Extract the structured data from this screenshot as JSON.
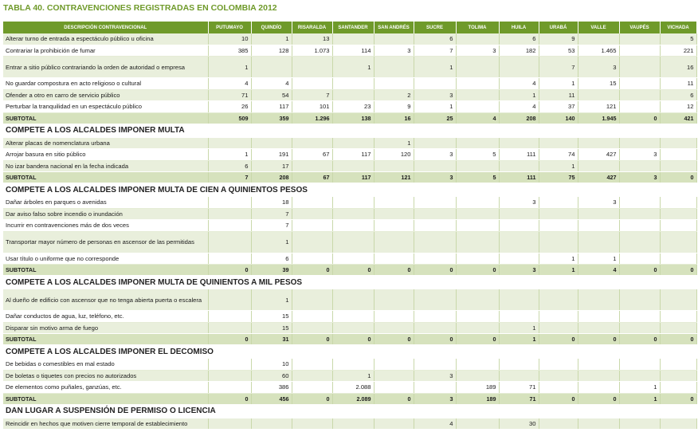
{
  "title": "TABLA 40. CONTRAVENCIONES REGISTRADAS EN COLOMBIA 2012",
  "headers": [
    "DESCRIPCIÓN CONTRAVENCIONAL",
    "PUTUMAYO",
    "QUINDÍO",
    "RISARALDA",
    "SANTANDER",
    "SAN ANDRÉS",
    "SUCRE",
    "TOLIMA",
    "HUILA",
    "URABÁ",
    "VALLE",
    "VAUPÉS",
    "VICHADA"
  ],
  "rows": [
    {
      "type": "data",
      "cells": [
        "Alterar turno de entrada a espectáculo público u oficina",
        "10",
        "1",
        "13",
        "",
        "",
        "6",
        "",
        "6",
        "9",
        "",
        "",
        "5"
      ]
    },
    {
      "type": "data",
      "cells": [
        "Contrariar la prohibición de fumar",
        "385",
        "128",
        "1.073",
        "114",
        "3",
        "7",
        "3",
        "182",
        "53",
        "1.465",
        "",
        "221"
      ]
    },
    {
      "type": "data",
      "tall": true,
      "cells": [
        "Entrar a sitio público contrariando la orden de autoridad o empresa",
        "1",
        "",
        "",
        "1",
        "",
        "1",
        "",
        "",
        "7",
        "3",
        "",
        "16"
      ]
    },
    {
      "type": "data",
      "cells": [
        "No guardar compostura en acto religioso o cultural",
        "4",
        "4",
        "",
        "",
        "",
        "",
        "",
        "4",
        "1",
        "15",
        "",
        "11"
      ]
    },
    {
      "type": "data",
      "cells": [
        "Ofender a otro en carro de servicio público",
        "71",
        "54",
        "7",
        "",
        "2",
        "3",
        "",
        "1",
        "11",
        "",
        "",
        "6"
      ]
    },
    {
      "type": "data",
      "cells": [
        "Perturbar la tranquilidad en un espectáculo público",
        "26",
        "117",
        "101",
        "23",
        "9",
        "1",
        "",
        "4",
        "37",
        "121",
        "",
        "12"
      ]
    },
    {
      "type": "subtotal",
      "cells": [
        "SUBTOTAL",
        "509",
        "359",
        "1.296",
        "138",
        "16",
        "25",
        "4",
        "208",
        "140",
        "1.945",
        "0",
        "421"
      ]
    },
    {
      "type": "section",
      "label": "COMPETE A LOS ALCALDES IMPONER MULTA"
    },
    {
      "type": "data",
      "cells": [
        "Alterar placas de nomenclatura urbana",
        "",
        "",
        "",
        "",
        "1",
        "",
        "",
        "",
        "",
        "",
        "",
        ""
      ]
    },
    {
      "type": "data",
      "cells": [
        "Arrojar basura en sitio público",
        "1",
        "191",
        "67",
        "117",
        "120",
        "3",
        "5",
        "111",
        "74",
        "427",
        "3",
        ""
      ]
    },
    {
      "type": "data",
      "cells": [
        "No izar bandera nacional en la fecha indicada",
        "6",
        "17",
        "",
        "",
        "",
        "",
        "",
        "",
        "1",
        "",
        "",
        ""
      ]
    },
    {
      "type": "subtotal",
      "cells": [
        "SUBTOTAL",
        "7",
        "208",
        "67",
        "117",
        "121",
        "3",
        "5",
        "111",
        "75",
        "427",
        "3",
        "0"
      ]
    },
    {
      "type": "section",
      "label": "COMPETE A LOS ALCALDES IMPONER MULTA DE CIEN A QUINIENTOS PESOS"
    },
    {
      "type": "data",
      "cells": [
        "Dañar árboles en parques o avenidas",
        "",
        "18",
        "",
        "",
        "",
        "",
        "",
        "3",
        "",
        "3",
        "",
        ""
      ]
    },
    {
      "type": "data",
      "cells": [
        "Dar aviso falso sobre incendio o inundación",
        "",
        "7",
        "",
        "",
        "",
        "",
        "",
        "",
        "",
        "",
        "",
        ""
      ]
    },
    {
      "type": "data",
      "cells": [
        "Incurrir en contravenciones más de dos veces",
        "",
        "7",
        "",
        "",
        "",
        "",
        "",
        "",
        "",
        "",
        "",
        ""
      ]
    },
    {
      "type": "data",
      "tall": true,
      "cells": [
        "Transportar mayor número de personas en ascensor de las permitidas",
        "",
        "1",
        "",
        "",
        "",
        "",
        "",
        "",
        "",
        "",
        "",
        ""
      ]
    },
    {
      "type": "data",
      "cells": [
        "Usar título o uniforme que no corresponde",
        "",
        "6",
        "",
        "",
        "",
        "",
        "",
        "",
        "1",
        "1",
        "",
        ""
      ]
    },
    {
      "type": "subtotal",
      "cells": [
        "SUBTOTAL",
        "0",
        "39",
        "0",
        "0",
        "0",
        "0",
        "0",
        "3",
        "1",
        "4",
        "0",
        "0"
      ]
    },
    {
      "type": "section",
      "label": "COMPETE A LOS ALCALDES IMPONER MULTA DE QUINIENTOS A MIL PESOS"
    },
    {
      "type": "data",
      "tall": true,
      "cells": [
        "Al dueño de edificio con ascensor que no tenga abierta puerta o escalera",
        "",
        "1",
        "",
        "",
        "",
        "",
        "",
        "",
        "",
        "",
        "",
        ""
      ]
    },
    {
      "type": "data",
      "cells": [
        "Dañar conductos de agua, luz, teléfono, etc.",
        "",
        "15",
        "",
        "",
        "",
        "",
        "",
        "",
        "",
        "",
        "",
        ""
      ]
    },
    {
      "type": "data",
      "cells": [
        "Disparar sin motivo arma de fuego",
        "",
        "15",
        "",
        "",
        "",
        "",
        "",
        "1",
        "",
        "",
        "",
        ""
      ]
    },
    {
      "type": "subtotal",
      "cells": [
        "SUBTOTAL",
        "0",
        "31",
        "0",
        "0",
        "0",
        "0",
        "0",
        "1",
        "0",
        "0",
        "0",
        "0"
      ]
    },
    {
      "type": "section",
      "label": "COMPETE A LOS ALCALDES IMPONER EL DECOMISO"
    },
    {
      "type": "data",
      "cells": [
        "De bebidas o comestibles en mal estado",
        "",
        "10",
        "",
        "",
        "",
        "",
        "",
        "",
        "",
        "",
        "",
        ""
      ]
    },
    {
      "type": "data",
      "cells": [
        "De boletas o tiquetes con precios no autorizados",
        "",
        "60",
        "",
        "1",
        "",
        "3",
        "",
        "",
        "",
        "",
        "",
        ""
      ]
    },
    {
      "type": "data",
      "cells": [
        "De elementos como puñales, ganzúas, etc.",
        "",
        "386",
        "",
        "2.088",
        "",
        "",
        "189",
        "71",
        "",
        "",
        "1",
        ""
      ]
    },
    {
      "type": "subtotal",
      "cells": [
        "SUBTOTAL",
        "0",
        "456",
        "0",
        "2.089",
        "0",
        "3",
        "189",
        "71",
        "0",
        "0",
        "1",
        "0"
      ]
    },
    {
      "type": "section",
      "label": "DAN LUGAR A SUSPENSIÓN DE PERMISO O LICENCIA"
    },
    {
      "type": "data",
      "cells": [
        "Reincidir en hechos que motiven cierre temporal de establecimiento",
        "",
        "",
        "",
        "",
        "",
        "4",
        "",
        "30",
        "",
        "",
        "",
        ""
      ]
    }
  ]
}
